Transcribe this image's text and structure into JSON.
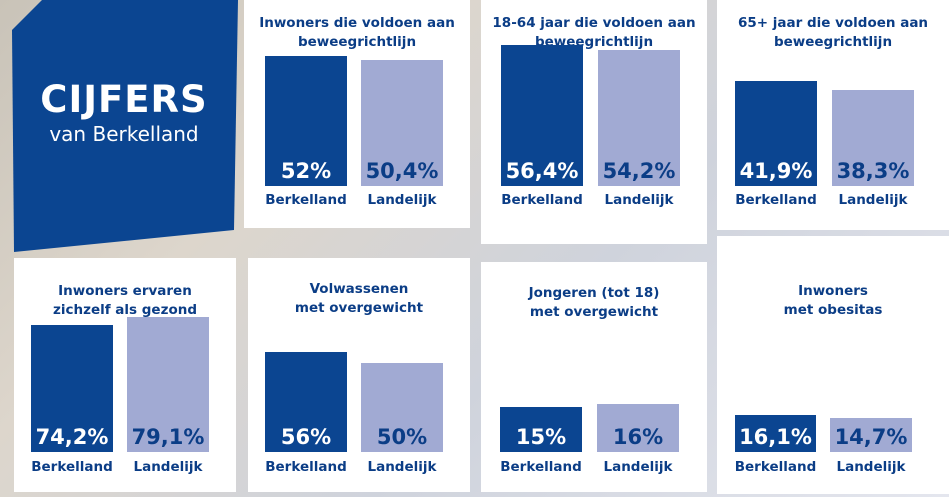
{
  "hero": {
    "title": "CIJFERS",
    "subtitle": "van Berkelland"
  },
  "colors": {
    "berkelland": "#0b4591",
    "landelijk": "#a1aad3",
    "title": "#0b3d86"
  },
  "chart_data": [
    {
      "type": "bar",
      "title": "Inwoners die voldoen aan beweegrichtlijn",
      "categories": [
        "Berkelland",
        "Landelijk"
      ],
      "values": [
        52,
        50.4
      ],
      "labels": [
        "52%",
        "50,4%"
      ]
    },
    {
      "type": "bar",
      "title": "18-64 jaar die voldoen aan beweegrichtlijn",
      "categories": [
        "Berkelland",
        "Landelijk"
      ],
      "values": [
        56.4,
        54.2
      ],
      "labels": [
        "56,4%",
        "54,2%"
      ]
    },
    {
      "type": "bar",
      "title": "65+ jaar die voldoen aan beweegrichtlijn",
      "categories": [
        "Berkelland",
        "Landelijk"
      ],
      "values": [
        41.9,
        38.3
      ],
      "labels": [
        "41,9%",
        "38,3%"
      ]
    },
    {
      "type": "bar",
      "title": "Inwoners ervaren zichzelf als gezond",
      "categories": [
        "Berkelland",
        "Landelijk"
      ],
      "values": [
        74.2,
        79.1
      ],
      "labels": [
        "74,2%",
        "79,1%"
      ]
    },
    {
      "type": "bar",
      "title": "Volwassenen met overgewicht",
      "categories": [
        "Berkelland",
        "Landelijk"
      ],
      "values": [
        56,
        50
      ],
      "labels": [
        "56%",
        "50%"
      ]
    },
    {
      "type": "bar",
      "title": "Jongeren (tot 18) met overgewicht",
      "categories": [
        "Berkelland",
        "Landelijk"
      ],
      "values": [
        15,
        16
      ],
      "labels": [
        "15%",
        "16%"
      ]
    },
    {
      "type": "bar",
      "title": "Inwoners met obesitas",
      "categories": [
        "Berkelland",
        "Landelijk"
      ],
      "values": [
        16.1,
        14.7
      ],
      "labels": [
        "16,1%",
        "14,7%"
      ]
    }
  ]
}
